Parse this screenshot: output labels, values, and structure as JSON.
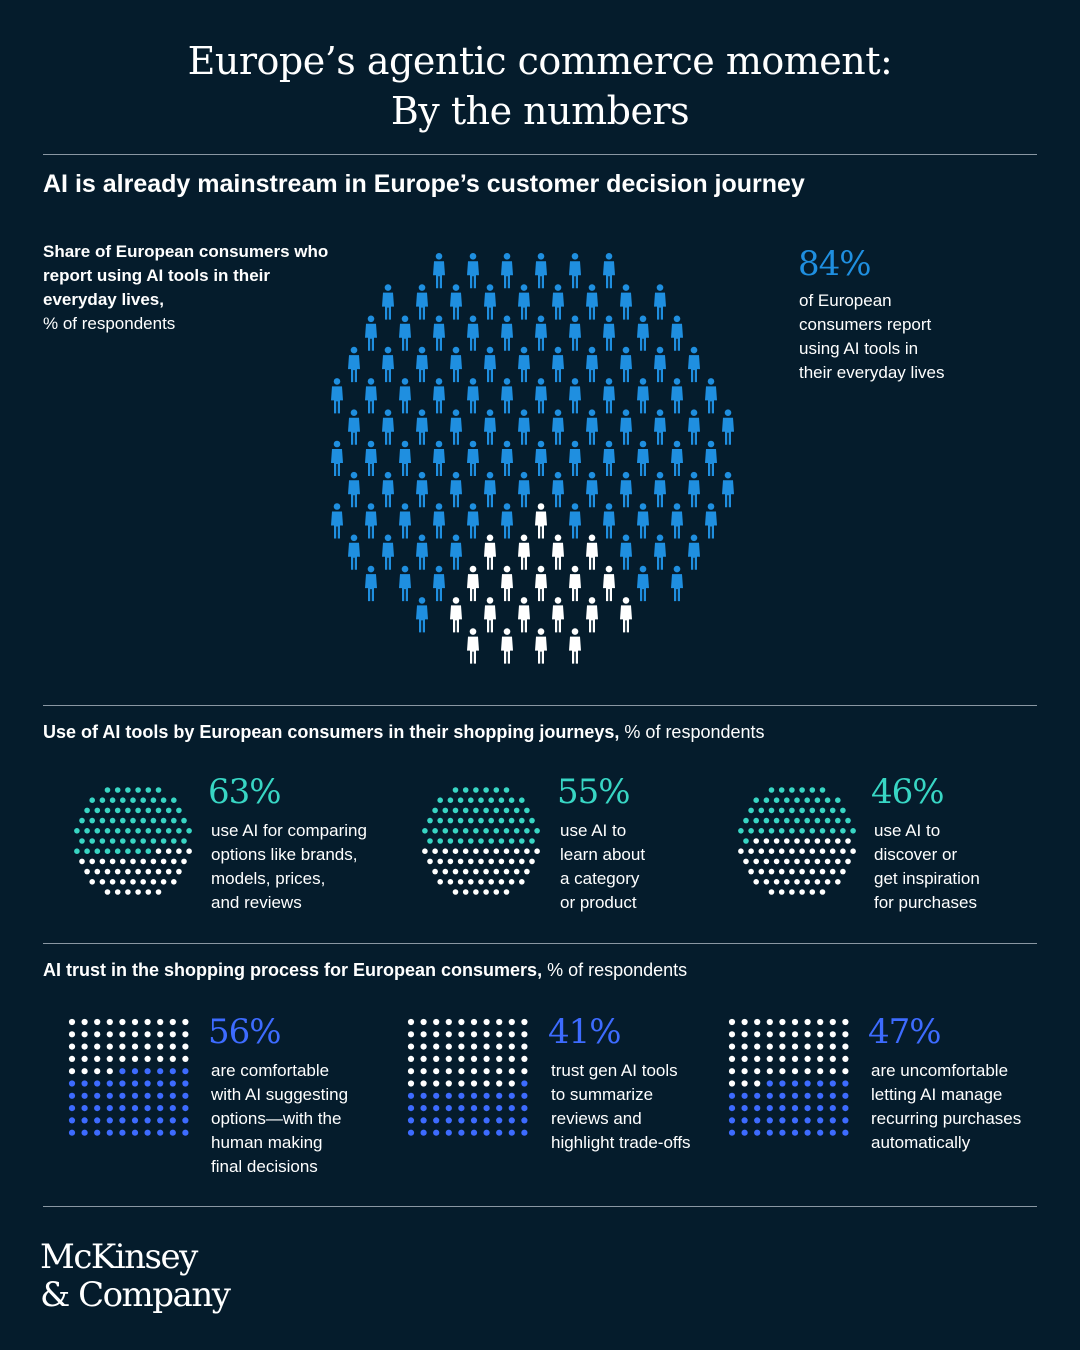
{
  "header": {
    "title_line1": "Europe’s agentic commerce moment:",
    "title_line2": "By the numbers"
  },
  "section1": {
    "title": "AI is already mainstream in Europe’s customer decision journey",
    "label_bold": "Share of European consumers who report using AI tools in their everyday lives,",
    "label_unit": "% of respondents",
    "stat": "84%",
    "stat_desc": [
      "of European",
      "consumers report",
      "using AI tools in",
      "their everyday lives"
    ]
  },
  "section2": {
    "title_bold": "Use of AI tools by European consumers in their shopping journeys,",
    "title_unit": " % of respondents",
    "items": [
      {
        "stat": "63%",
        "desc": [
          "use AI for comparing",
          "options like brands,",
          "models, prices,",
          "and reviews"
        ]
      },
      {
        "stat": "55%",
        "desc": [
          "use AI to",
          "learn about",
          "a category",
          "or product"
        ]
      },
      {
        "stat": "46%",
        "desc": [
          "use AI to",
          "discover or",
          "get inspiration",
          "for purchases"
        ]
      }
    ]
  },
  "section3": {
    "title_bold": "AI trust in the shopping process for European consumers,",
    "title_unit": " % of respondents",
    "items": [
      {
        "stat": "56%",
        "desc": [
          "are comfortable",
          "with AI suggesting",
          "options—with the",
          "human making",
          "final decisions"
        ]
      },
      {
        "stat": "41%",
        "desc": [
          "trust gen AI tools",
          "to summarize",
          "reviews and",
          "highlight trade-offs"
        ]
      },
      {
        "stat": "47%",
        "desc": [
          "are uncomfortable",
          "letting AI manage",
          "recurring purchases",
          "automatically"
        ]
      }
    ]
  },
  "chart_data": [
    {
      "type": "pictogram",
      "name": "Share of European consumers who report using AI tools in their everyday lives",
      "unit": "% of respondents",
      "values": [
        84
      ]
    },
    {
      "type": "dot-circle",
      "name": "Use of AI tools by European consumers in their shopping journeys",
      "unit": "% of respondents",
      "categories": [
        "use AI for comparing options like brands, models, prices, and reviews",
        "use AI to learn about a category or product",
        "use AI to discover or get inspiration for purchases"
      ],
      "values": [
        63,
        55,
        46
      ]
    },
    {
      "type": "dot-grid",
      "name": "AI trust in the shopping process for European consumers",
      "unit": "% of respondents",
      "categories": [
        "are comfortable with AI suggesting options—with the human making final decisions",
        "trust gen AI tools to summarize reviews and highlight trade-offs",
        "are uncomfortable letting AI manage recurring purchases automatically"
      ],
      "values": [
        56,
        41,
        47
      ]
    }
  ],
  "colors": {
    "background": "#051C2C",
    "people_blue": "#1F8FE0",
    "teal": "#38D6C4",
    "blue_dots": "#3D6BFF",
    "white": "#FFFFFF"
  },
  "brand": {
    "line1": "McKinsey",
    "line2": "& Company"
  }
}
